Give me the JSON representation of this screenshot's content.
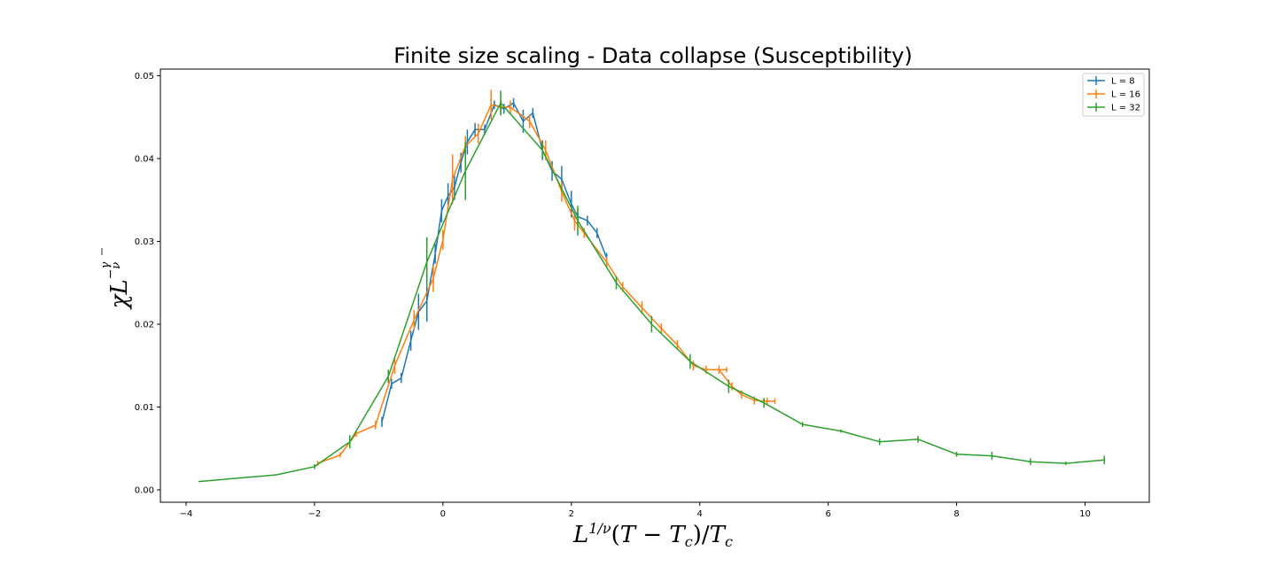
{
  "chart_data": {
    "type": "line",
    "title": "Finite size scaling - Data collapse (Susceptibility)",
    "xlabel": "L^{1/ν}(T − T_c)/T_c",
    "ylabel": "χL^{−γ/ν}",
    "xlim": [
      -4.4,
      11.0
    ],
    "ylim": [
      -0.0015,
      0.0508
    ],
    "x_ticks": [
      -4,
      -2,
      0,
      2,
      4,
      6,
      8,
      10
    ],
    "y_ticks": [
      0.0,
      0.01,
      0.02,
      0.03,
      0.04,
      0.05
    ],
    "x_tick_labels": [
      "−4",
      "−2",
      "0",
      "2",
      "4",
      "6",
      "8",
      "10"
    ],
    "y_tick_labels": [
      "0.00",
      "0.01",
      "0.02",
      "0.03",
      "0.04",
      "0.05"
    ],
    "grid": false,
    "legend_position": "top-right",
    "series": [
      {
        "name": "L = 8",
        "color": "#1f77b4",
        "x": [
          -0.95,
          -0.8,
          -0.65,
          -0.5,
          -0.38,
          -0.25,
          -0.12,
          -0.02,
          0.08,
          0.18,
          0.28,
          0.38,
          0.5,
          0.65,
          0.8,
          0.95,
          1.1,
          1.25,
          1.4,
          1.55,
          1.7,
          1.85,
          2.0,
          2.1,
          2.25,
          2.4,
          2.55
        ],
        "y": [
          0.0082,
          0.0128,
          0.0135,
          0.018,
          0.0215,
          0.0228,
          0.0285,
          0.0337,
          0.0355,
          0.0365,
          0.0395,
          0.042,
          0.0435,
          0.0435,
          0.0465,
          0.046,
          0.0467,
          0.0445,
          0.0455,
          0.041,
          0.0385,
          0.0375,
          0.0345,
          0.033,
          0.0325,
          0.031,
          0.028
        ],
        "yerr": [
          0.0006,
          0.0006,
          0.0006,
          0.0012,
          0.0022,
          0.0025,
          0.0012,
          0.0014,
          0.0015,
          0.0015,
          0.0012,
          0.0015,
          0.0008,
          0.0006,
          0.0005,
          0.0006,
          0.0006,
          0.0014,
          0.0006,
          0.0012,
          0.0012,
          0.0016,
          0.0016,
          0.0008,
          0.0006,
          0.0006,
          0.0006
        ]
      },
      {
        "name": "L = 16",
        "color": "#ff7f0e",
        "x": [
          -1.95,
          -1.6,
          -1.35,
          -1.05,
          -0.75,
          -0.45,
          -0.15,
          0.0,
          0.15,
          0.35,
          0.55,
          0.75,
          0.9,
          1.05,
          1.35,
          1.6,
          1.85,
          2.05,
          2.2,
          2.55,
          2.8,
          3.1,
          3.4,
          3.65,
          3.9,
          4.1,
          4.3,
          4.5,
          4.65,
          4.85,
          5.05
        ],
        "y": [
          0.0032,
          0.0042,
          0.0068,
          0.0078,
          0.015,
          0.0205,
          0.0255,
          0.0302,
          0.0375,
          0.0415,
          0.043,
          0.0465,
          0.0462,
          0.0462,
          0.0445,
          0.041,
          0.036,
          0.0325,
          0.031,
          0.0275,
          0.0245,
          0.022,
          0.0195,
          0.0175,
          0.015,
          0.0145,
          0.0145,
          0.0125,
          0.0115,
          0.0108,
          0.0107
        ],
        "yerr": [
          0.0003,
          0.0003,
          0.0004,
          0.0005,
          0.001,
          0.0012,
          0.0016,
          0.0012,
          0.003,
          0.0012,
          0.0012,
          0.0018,
          0.0008,
          0.0008,
          0.0008,
          0.0012,
          0.0012,
          0.0012,
          0.0006,
          0.0006,
          0.0006,
          0.0008,
          0.0006,
          0.0006,
          0.0006,
          0.0005,
          0.0005,
          0.0005,
          0.0005,
          0.0005,
          0.0004
        ],
        "xerr": [
          0,
          0,
          0,
          0,
          0,
          0,
          0,
          0,
          0,
          0,
          0,
          0,
          0,
          0,
          0,
          0,
          0,
          0,
          0,
          0,
          0,
          0,
          0,
          0,
          0,
          0,
          0.12,
          0,
          0,
          0,
          0.12
        ]
      },
      {
        "name": "L = 32",
        "color": "#2ca02c",
        "x": [
          -3.8,
          -2.6,
          -2.0,
          -1.45,
          -0.85,
          -0.25,
          0.35,
          0.9,
          1.55,
          2.1,
          2.7,
          3.25,
          3.85,
          4.45,
          5.0,
          5.6,
          6.2,
          6.8,
          7.4,
          8.0,
          8.55,
          9.15,
          9.7,
          10.3
        ],
        "y": [
          0.001,
          0.0018,
          0.0028,
          0.0058,
          0.0137,
          0.0275,
          0.0385,
          0.0467,
          0.041,
          0.0325,
          0.025,
          0.02,
          0.0155,
          0.0125,
          0.0105,
          0.0079,
          0.0071,
          0.0058,
          0.0061,
          0.0043,
          0.0041,
          0.0034,
          0.0032,
          0.0036
        ],
        "yerr": [
          0.0,
          0.0,
          0.0003,
          0.0008,
          0.0008,
          0.003,
          0.0035,
          0.0015,
          0.001,
          0.0018,
          0.0008,
          0.001,
          0.0009,
          0.0008,
          0.0006,
          0.0003,
          0.0002,
          0.0004,
          0.0004,
          0.0003,
          0.0005,
          0.0004,
          0.0002,
          0.0005
        ]
      }
    ]
  }
}
